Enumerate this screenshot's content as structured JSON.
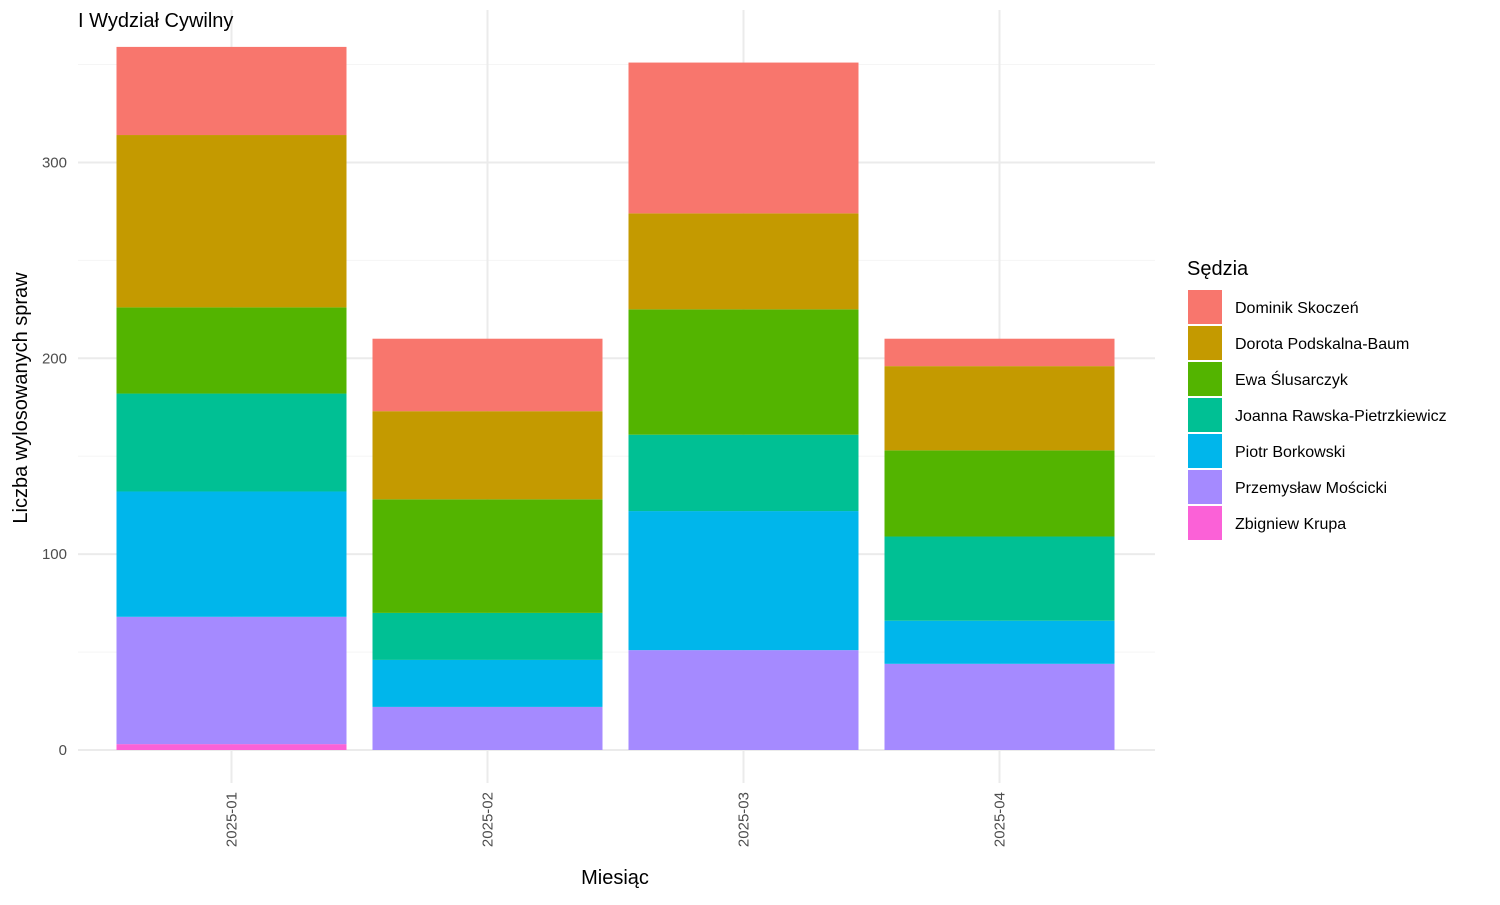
{
  "chart_data": {
    "type": "bar",
    "stacked": true,
    "title": "I Wydział Cywilny",
    "xlabel": "Miesiąc",
    "ylabel": "Liczba wylosowanych spraw",
    "categories": [
      "2025-01",
      "2025-02",
      "2025-03",
      "2025-04"
    ],
    "y_ticks": [
      0,
      100,
      200,
      300
    ],
    "ylim": [
      0,
      360
    ],
    "grid": true,
    "legend": {
      "title": "Sędzia",
      "position": "right"
    },
    "series": [
      {
        "name": "Dominik Skoczeń",
        "color": "#F8766D",
        "values": [
          45,
          37,
          77,
          14
        ]
      },
      {
        "name": "Dorota Podskalna-Baum",
        "color": "#C49A00",
        "values": [
          88,
          45,
          49,
          43
        ]
      },
      {
        "name": "Ewa Ślusarczyk",
        "color": "#53B400",
        "values": [
          44,
          58,
          64,
          44
        ]
      },
      {
        "name": "Joanna Rawska-Pietrzkiewicz",
        "color": "#00C094",
        "values": [
          50,
          24,
          39,
          43
        ]
      },
      {
        "name": "Piotr Borkowski",
        "color": "#00B6EB",
        "values": [
          64,
          24,
          71,
          22
        ]
      },
      {
        "name": "Przemysław Mościcki",
        "color": "#A58AFF",
        "values": [
          65,
          22,
          51,
          44
        ]
      },
      {
        "name": "Zbigniew Krupa",
        "color": "#FB61D7",
        "values": [
          3,
          0,
          0,
          0
        ]
      }
    ]
  }
}
